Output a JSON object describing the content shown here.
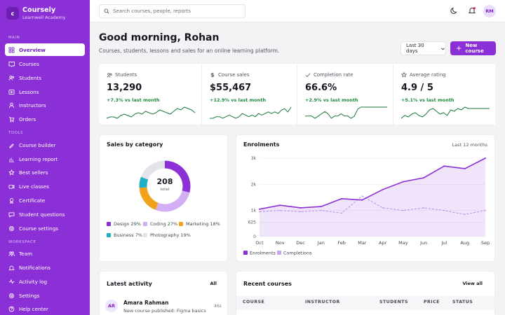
{
  "brand": {
    "logo_letter": "c",
    "name": "Coursely",
    "subtitle": "Learnwell Academy"
  },
  "sidebar": {
    "sections": [
      "Main",
      "Tools",
      "Workspace"
    ],
    "items": [
      {
        "label": "Overview",
        "icon": "grid-icon"
      },
      {
        "label": "Courses",
        "icon": "book-icon"
      },
      {
        "label": "Students",
        "icon": "users-icon"
      },
      {
        "label": "Lessons",
        "icon": "play-icon"
      },
      {
        "label": "Instructors",
        "icon": "user-icon"
      },
      {
        "label": "Orders",
        "icon": "cart-icon"
      },
      {
        "label": "Course builder",
        "icon": "builder-icon"
      },
      {
        "label": "Learning report",
        "icon": "chart-icon"
      },
      {
        "label": "Best sellers",
        "icon": "star-icon"
      },
      {
        "label": "Live classes",
        "icon": "video-icon"
      },
      {
        "label": "Certificate",
        "icon": "certificate-icon"
      },
      {
        "label": "Student questions",
        "icon": "chat-icon"
      },
      {
        "label": "Course settings",
        "icon": "gear-icon"
      },
      {
        "label": "Team",
        "icon": "team-icon"
      },
      {
        "label": "Notifications",
        "icon": "bell-icon"
      },
      {
        "label": "Activity log",
        "icon": "activity-icon"
      },
      {
        "label": "Settings",
        "icon": "gear-icon"
      },
      {
        "label": "Help center",
        "icon": "help-icon"
      }
    ]
  },
  "topbar": {
    "search_placeholder": "Search courses, people, reports",
    "avatar_initials": "RM"
  },
  "header": {
    "title": "Good morning, Rohan",
    "subtitle": "Courses, students, lessons and sales for an online learning platform.",
    "range": "Last 30 days",
    "new_course": "New course"
  },
  "stats": [
    {
      "label": "Students",
      "value": "13,290",
      "delta": "+7.3% vs last month",
      "icon": "users-icon"
    },
    {
      "label": "Course sales",
      "value": "$55,467",
      "delta": "+12.9% vs last month",
      "icon": "dollar-icon"
    },
    {
      "label": "Completion rate",
      "value": "66.6%",
      "delta": "+2.9% vs last month",
      "icon": "check-icon"
    },
    {
      "label": "Average rating",
      "value": "4.9 / 5",
      "delta": "+5.1% vs last month",
      "icon": "star-icon"
    }
  ],
  "sparklines": [
    [
      6,
      7,
      7,
      6,
      8,
      9,
      8,
      7,
      9,
      10,
      9,
      11,
      10,
      9,
      10,
      12,
      11,
      10,
      9,
      11,
      13,
      12,
      14,
      13,
      12,
      10
    ],
    [
      5,
      5,
      6,
      6,
      5,
      6,
      7,
      6,
      5,
      6,
      8,
      7,
      6,
      7,
      6,
      8,
      7,
      8,
      9,
      8,
      9,
      8,
      10,
      11,
      9,
      12
    ],
    [
      6,
      6,
      6,
      5,
      6,
      7,
      8,
      7,
      5,
      6,
      6,
      7,
      6,
      6,
      5,
      6,
      9,
      10,
      10,
      10,
      10,
      10,
      10,
      10,
      10,
      10
    ],
    [
      3,
      5,
      4,
      6,
      7,
      5,
      4,
      6,
      9,
      10,
      8,
      6,
      7,
      5,
      9,
      8,
      10,
      9,
      11,
      10,
      10,
      10,
      10,
      10,
      10,
      10
    ]
  ],
  "sales_by_category": {
    "title": "Sales by category",
    "total": "208",
    "total_label": "total",
    "segments": [
      {
        "name": "Design 29%",
        "pct": 29,
        "color": "#8b2fd6"
      },
      {
        "name": "Coding 27%",
        "pct": 27,
        "color": "#d2aff5"
      },
      {
        "name": "Marketing 18%",
        "pct": 18,
        "color": "#f0a31a"
      },
      {
        "name": "Business 7%",
        "pct": 7,
        "color": "#1fb0c8"
      },
      {
        "name": "Photography 19%",
        "pct": 19,
        "color": "#e3e3ea"
      }
    ]
  },
  "chart_data": {
    "type": "area",
    "title": "Enrolments",
    "range_label": "Last 12 months",
    "categories": [
      "Oct",
      "Nov",
      "Dec",
      "Jan",
      "Feb",
      "Mar",
      "Apr",
      "May",
      "Jun",
      "Jul",
      "Aug",
      "Sep"
    ],
    "yticks": [
      "0",
      "625",
      "1k",
      "2k",
      "3k"
    ],
    "series": [
      {
        "name": "Enrolments",
        "values": [
          1.05,
          1.2,
          1.1,
          1.15,
          1.45,
          1.4,
          1.8,
          2.1,
          2.25,
          2.7,
          2.6,
          3.0
        ],
        "color": "#8b2fd6"
      },
      {
        "name": "Completions",
        "values": [
          0.95,
          1.0,
          0.95,
          1.0,
          0.9,
          1.55,
          1.1,
          1.0,
          1.1,
          1.0,
          0.85,
          1.0
        ],
        "color": "#c9a4ef"
      }
    ]
  },
  "activity": {
    "title": "Latest activity",
    "all": "All",
    "initials": "AR",
    "name": "Amara Rahman",
    "text": "New course published: Figma basics",
    "time": "46s"
  },
  "recent": {
    "title": "Recent courses",
    "view_all": "View all",
    "columns": [
      "COURSE",
      "INSTRUCTOR",
      "STUDENTS",
      "PRICE",
      "STATUS"
    ]
  }
}
